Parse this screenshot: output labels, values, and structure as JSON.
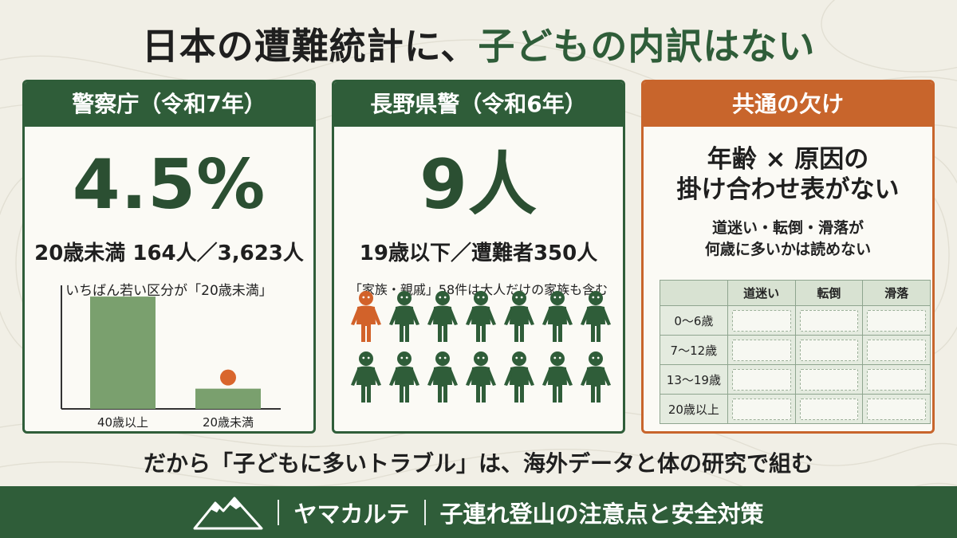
{
  "title": {
    "lead": "日本の遭難統計に、",
    "accent": "子どもの内訳はない"
  },
  "panel1": {
    "header": "警察庁（令和7年）",
    "big": "4.5%",
    "stat": "20歳未満 164人／3,623人",
    "note": "いちばん若い区分が「20歳未満」"
  },
  "chart_data": {
    "type": "bar",
    "categories": [
      "40歳以上",
      "20歳未満"
    ],
    "values": [
      1.0,
      0.18
    ],
    "title": "",
    "xlabel": "",
    "ylabel": "",
    "ylim": [
      0,
      1.1
    ],
    "grid": false,
    "highlight": {
      "category": "20歳未満",
      "color": "#d9662d"
    },
    "colors": {
      "bar": "#7aa06e",
      "axis": "#333333"
    }
  },
  "panel2": {
    "header": "長野県警（令和6年）",
    "big": "9人",
    "stat": "19歳以下／遭難者350人",
    "note": "「家族・親戚」58件は大人だけの家族も含む",
    "figures_total": 14,
    "figures_highlighted": 1,
    "figure_icon": "person-icon",
    "colors": {
      "highlight": "#d2622a",
      "normal": "#2f5d39"
    }
  },
  "panel3": {
    "header": "共通の欠け",
    "title_line1": "年齢 × 原因の",
    "title_line2": "掛け合わせ表がない",
    "desc_line1": "道迷い・転倒・滑落が",
    "desc_line2": "何歳に多いかは読めない",
    "table": {
      "columns": [
        "道迷い",
        "転倒",
        "滑落"
      ],
      "rows": [
        "0〜6歳",
        "7〜12歳",
        "13〜19歳",
        "20歳以上"
      ]
    }
  },
  "bottom": "だから「子どもに多いトラブル」は、海外データと体の研究で組む",
  "footer": {
    "logo_icon": "mountain-icon",
    "brand": "ヤマカルテ",
    "tagline": "子連れ登山の注意点と安全対策"
  },
  "colors": {
    "green": "#2f5d39",
    "orange": "#c8652c",
    "background": "#f1efe6"
  }
}
